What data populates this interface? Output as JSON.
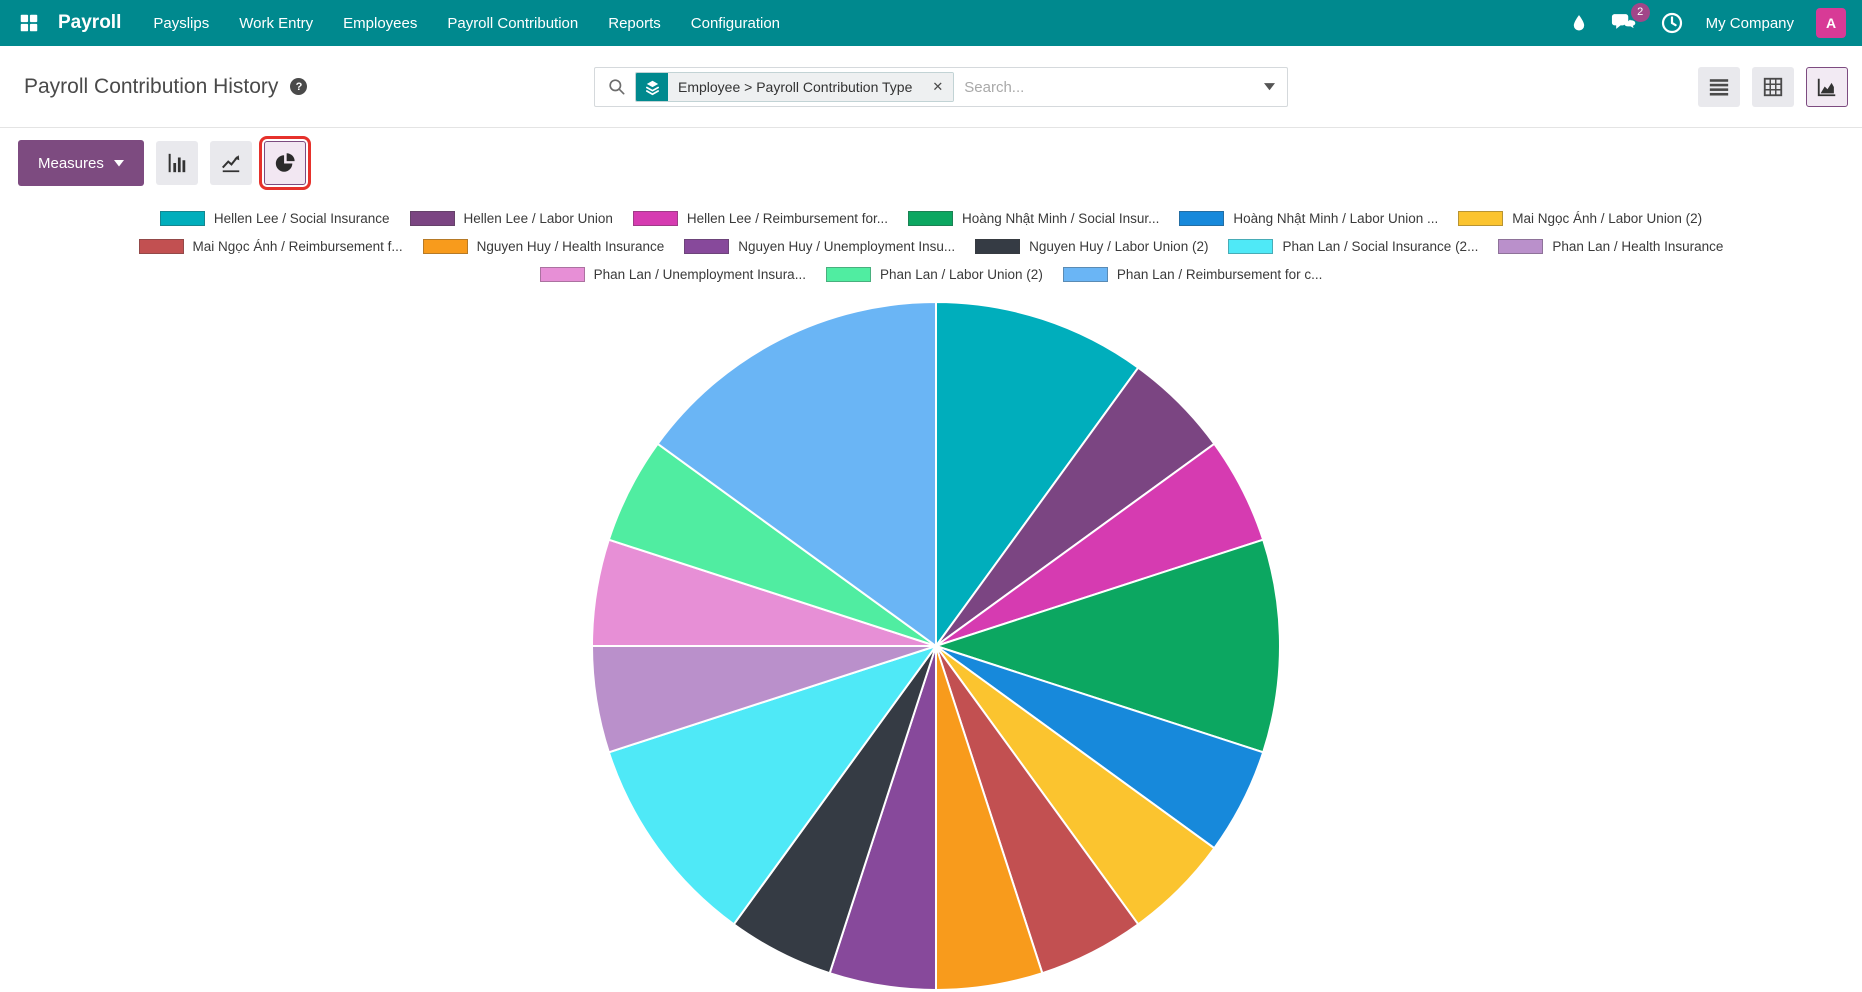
{
  "ui_colors": {
    "nav_bg": "#00898E",
    "accent_purple": "#7D4B80",
    "annotation_red": "#E6312B",
    "badge_bg": "#A24689",
    "avatar_bg": "#D83A96"
  },
  "nav": {
    "brand": "Payroll",
    "items": [
      "Payslips",
      "Work Entry",
      "Employees",
      "Payroll Contribution",
      "Reports",
      "Configuration"
    ],
    "message_badge": "2",
    "company": "My Company",
    "avatar_letter": "A"
  },
  "control_panel": {
    "title": "Payroll Contribution History",
    "help_glyph": "?",
    "search": {
      "facet_label": "Employee > Payroll Contribution Type",
      "facet_close_glyph": "✕",
      "placeholder": "Search..."
    }
  },
  "toolbar": {
    "measures_label": "Measures"
  },
  "view_switcher": {
    "views": [
      "list",
      "pivot",
      "graph"
    ],
    "active": "graph"
  },
  "chart_types": [
    "bar",
    "line",
    "pie"
  ],
  "active_chart_type": "pie",
  "chart_data": {
    "type": "pie",
    "title": "",
    "legend_position": "top",
    "start_angle_deg": 0,
    "direction": "clockwise",
    "categories": [
      "Hellen Lee / Social Insurance",
      "Hellen Lee / Labor Union",
      "Hellen Lee / Reimbursement for...",
      "Hoàng Nhật Minh / Social Insur...",
      "Hoàng Nhật Minh / Labor Union ...",
      "Mai Ngọc Ánh / Labor Union (2)",
      "Mai Ngọc Ánh / Reimbursement f...",
      "Nguyen Huy / Health Insurance",
      "Nguyen Huy / Unemployment Insu...",
      "Nguyen Huy / Labor Union (2)",
      "Phan Lan / Social Insurance (2...",
      "Phan Lan / Health Insurance",
      "Phan Lan / Unemployment Insura...",
      "Phan Lan / Labor Union (2)",
      "Phan Lan / Reimbursement for c..."
    ],
    "values": [
      2,
      1,
      1,
      2,
      1,
      1,
      1,
      1,
      1,
      1,
      2,
      1,
      1,
      1,
      3
    ],
    "percentages": [
      10,
      5,
      5,
      10,
      5,
      5,
      5,
      5,
      5,
      5,
      10,
      5,
      5,
      5,
      15
    ],
    "slice_angles_deg": [
      36,
      18,
      18,
      36,
      18,
      18,
      18,
      18,
      18,
      18,
      36,
      18,
      18,
      18,
      54
    ],
    "colors": [
      "#00AEBC",
      "#7B4582",
      "#D63BB1",
      "#0CA761",
      "#1789DB",
      "#FBC42F",
      "#C25051",
      "#F89B1C",
      "#87499B",
      "#353B44",
      "#4FE9F7",
      "#BA90CB",
      "#E78FD6",
      "#50EDA1",
      "#6AB5F5"
    ],
    "legend_rows": [
      [
        0,
        6
      ],
      [
        6,
        12
      ],
      [
        12,
        15
      ]
    ]
  }
}
